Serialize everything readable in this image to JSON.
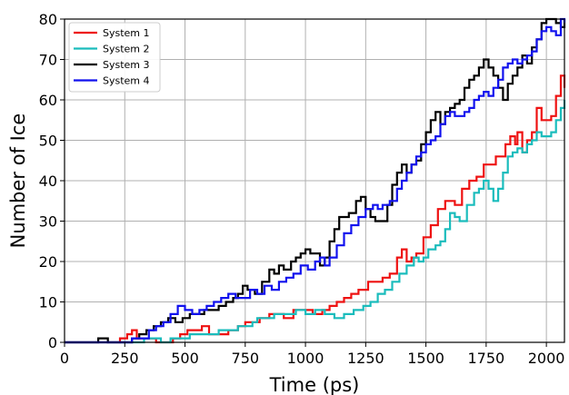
{
  "chart_data": {
    "type": "line",
    "title": "",
    "xlabel": "Time (ps)",
    "ylabel": "Number of Ice",
    "xlim": [
      0,
      2075
    ],
    "ylim": [
      0,
      80
    ],
    "xticks": [
      0,
      250,
      500,
      750,
      1000,
      1250,
      1500,
      1750,
      2000
    ],
    "yticks": [
      0,
      10,
      20,
      30,
      40,
      50,
      60,
      70,
      80
    ],
    "grid": true,
    "legend_position": "top-left",
    "series": [
      {
        "name": "System 1",
        "color": "#ee1111",
        "points": [
          [
            0,
            0
          ],
          [
            200,
            0
          ],
          [
            230,
            1
          ],
          [
            260,
            2
          ],
          [
            280,
            3
          ],
          [
            300,
            1
          ],
          [
            340,
            1
          ],
          [
            380,
            0
          ],
          [
            420,
            0
          ],
          [
            450,
            1
          ],
          [
            480,
            2
          ],
          [
            510,
            3
          ],
          [
            540,
            3
          ],
          [
            570,
            4
          ],
          [
            600,
            2
          ],
          [
            640,
            2
          ],
          [
            680,
            3
          ],
          [
            720,
            4
          ],
          [
            750,
            5
          ],
          [
            780,
            5
          ],
          [
            810,
            6
          ],
          [
            850,
            7
          ],
          [
            880,
            7
          ],
          [
            910,
            6
          ],
          [
            950,
            8
          ],
          [
            990,
            8
          ],
          [
            1030,
            7
          ],
          [
            1070,
            8
          ],
          [
            1100,
            9
          ],
          [
            1130,
            10
          ],
          [
            1160,
            11
          ],
          [
            1190,
            12
          ],
          [
            1220,
            13
          ],
          [
            1260,
            15
          ],
          [
            1290,
            15
          ],
          [
            1320,
            16
          ],
          [
            1350,
            17
          ],
          [
            1380,
            21
          ],
          [
            1400,
            23
          ],
          [
            1420,
            20
          ],
          [
            1440,
            21
          ],
          [
            1460,
            22
          ],
          [
            1490,
            26
          ],
          [
            1520,
            29
          ],
          [
            1550,
            33
          ],
          [
            1580,
            35
          ],
          [
            1600,
            35
          ],
          [
            1620,
            34
          ],
          [
            1650,
            38
          ],
          [
            1680,
            40
          ],
          [
            1710,
            41
          ],
          [
            1740,
            44
          ],
          [
            1770,
            44
          ],
          [
            1790,
            46
          ],
          [
            1810,
            46
          ],
          [
            1830,
            49
          ],
          [
            1850,
            51
          ],
          [
            1870,
            49
          ],
          [
            1880,
            52
          ],
          [
            1900,
            47
          ],
          [
            1920,
            50
          ],
          [
            1940,
            52
          ],
          [
            1960,
            58
          ],
          [
            1980,
            55
          ],
          [
            2000,
            55
          ],
          [
            2020,
            56
          ],
          [
            2040,
            61
          ],
          [
            2060,
            66
          ],
          [
            2075,
            63
          ]
        ]
      },
      {
        "name": "System 2",
        "color": "#1abcbc",
        "points": [
          [
            0,
            0
          ],
          [
            300,
            0
          ],
          [
            330,
            1
          ],
          [
            360,
            1
          ],
          [
            400,
            0
          ],
          [
            440,
            1
          ],
          [
            480,
            1
          ],
          [
            520,
            2
          ],
          [
            560,
            2
          ],
          [
            600,
            2
          ],
          [
            640,
            3
          ],
          [
            680,
            3
          ],
          [
            720,
            4
          ],
          [
            750,
            4
          ],
          [
            780,
            5
          ],
          [
            800,
            6
          ],
          [
            840,
            6
          ],
          [
            870,
            7
          ],
          [
            920,
            7
          ],
          [
            960,
            8
          ],
          [
            1000,
            7
          ],
          [
            1040,
            8
          ],
          [
            1080,
            7
          ],
          [
            1120,
            6
          ],
          [
            1160,
            7
          ],
          [
            1200,
            8
          ],
          [
            1240,
            9
          ],
          [
            1270,
            10
          ],
          [
            1300,
            12
          ],
          [
            1330,
            13
          ],
          [
            1360,
            15
          ],
          [
            1390,
            17
          ],
          [
            1420,
            19
          ],
          [
            1450,
            21
          ],
          [
            1470,
            20
          ],
          [
            1490,
            21
          ],
          [
            1510,
            23
          ],
          [
            1540,
            24
          ],
          [
            1560,
            25
          ],
          [
            1580,
            28
          ],
          [
            1600,
            32
          ],
          [
            1620,
            31
          ],
          [
            1640,
            30
          ],
          [
            1670,
            34
          ],
          [
            1700,
            37
          ],
          [
            1720,
            38
          ],
          [
            1740,
            40
          ],
          [
            1760,
            38
          ],
          [
            1780,
            35
          ],
          [
            1800,
            38
          ],
          [
            1820,
            42
          ],
          [
            1840,
            46
          ],
          [
            1860,
            47
          ],
          [
            1880,
            48
          ],
          [
            1900,
            47
          ],
          [
            1920,
            49
          ],
          [
            1940,
            50
          ],
          [
            1960,
            52
          ],
          [
            1980,
            51
          ],
          [
            2000,
            51
          ],
          [
            2020,
            52
          ],
          [
            2040,
            55
          ],
          [
            2060,
            58
          ],
          [
            2075,
            60
          ]
        ]
      },
      {
        "name": "System 3",
        "color": "#000000",
        "points": [
          [
            0,
            0
          ],
          [
            130,
            0
          ],
          [
            140,
            1
          ],
          [
            170,
            1
          ],
          [
            180,
            0
          ],
          [
            250,
            0
          ],
          [
            280,
            1
          ],
          [
            310,
            2
          ],
          [
            340,
            3
          ],
          [
            370,
            4
          ],
          [
            400,
            5
          ],
          [
            430,
            6
          ],
          [
            460,
            5
          ],
          [
            490,
            6
          ],
          [
            520,
            7
          ],
          [
            550,
            7
          ],
          [
            580,
            8
          ],
          [
            610,
            8
          ],
          [
            640,
            9
          ],
          [
            670,
            10
          ],
          [
            700,
            11
          ],
          [
            720,
            12
          ],
          [
            740,
            14
          ],
          [
            760,
            13
          ],
          [
            790,
            12
          ],
          [
            820,
            15
          ],
          [
            850,
            18
          ],
          [
            870,
            17
          ],
          [
            890,
            19
          ],
          [
            910,
            18
          ],
          [
            940,
            20
          ],
          [
            960,
            21
          ],
          [
            980,
            22
          ],
          [
            1000,
            23
          ],
          [
            1020,
            22
          ],
          [
            1040,
            22
          ],
          [
            1060,
            19
          ],
          [
            1080,
            21
          ],
          [
            1100,
            25
          ],
          [
            1120,
            28
          ],
          [
            1140,
            31
          ],
          [
            1160,
            31
          ],
          [
            1180,
            32
          ],
          [
            1210,
            35
          ],
          [
            1230,
            36
          ],
          [
            1250,
            33
          ],
          [
            1270,
            31
          ],
          [
            1290,
            30
          ],
          [
            1310,
            30
          ],
          [
            1340,
            34
          ],
          [
            1360,
            39
          ],
          [
            1380,
            42
          ],
          [
            1400,
            44
          ],
          [
            1420,
            42
          ],
          [
            1440,
            44
          ],
          [
            1460,
            45
          ],
          [
            1480,
            49
          ],
          [
            1500,
            52
          ],
          [
            1520,
            55
          ],
          [
            1540,
            57
          ],
          [
            1560,
            54
          ],
          [
            1580,
            57
          ],
          [
            1600,
            58
          ],
          [
            1620,
            59
          ],
          [
            1640,
            60
          ],
          [
            1660,
            63
          ],
          [
            1680,
            65
          ],
          [
            1700,
            66
          ],
          [
            1720,
            68
          ],
          [
            1740,
            70
          ],
          [
            1760,
            68
          ],
          [
            1780,
            66
          ],
          [
            1800,
            63
          ],
          [
            1820,
            60
          ],
          [
            1840,
            64
          ],
          [
            1860,
            66
          ],
          [
            1880,
            68
          ],
          [
            1900,
            71
          ],
          [
            1920,
            69
          ],
          [
            1940,
            73
          ],
          [
            1960,
            75
          ],
          [
            1980,
            79
          ],
          [
            2000,
            80
          ],
          [
            2020,
            80
          ],
          [
            2040,
            79
          ],
          [
            2060,
            78
          ],
          [
            2075,
            80
          ]
        ]
      },
      {
        "name": "System 4",
        "color": "#1111ee",
        "points": [
          [
            0,
            0
          ],
          [
            250,
            0
          ],
          [
            280,
            1
          ],
          [
            320,
            1
          ],
          [
            350,
            3
          ],
          [
            380,
            4
          ],
          [
            410,
            5
          ],
          [
            440,
            7
          ],
          [
            470,
            9
          ],
          [
            500,
            8
          ],
          [
            530,
            7
          ],
          [
            560,
            8
          ],
          [
            590,
            9
          ],
          [
            620,
            10
          ],
          [
            650,
            11
          ],
          [
            680,
            12
          ],
          [
            710,
            11
          ],
          [
            740,
            11
          ],
          [
            770,
            13
          ],
          [
            800,
            12
          ],
          [
            830,
            14
          ],
          [
            860,
            13
          ],
          [
            890,
            15
          ],
          [
            920,
            16
          ],
          [
            950,
            17
          ],
          [
            980,
            19
          ],
          [
            1010,
            18
          ],
          [
            1040,
            20
          ],
          [
            1060,
            21
          ],
          [
            1080,
            19
          ],
          [
            1100,
            21
          ],
          [
            1130,
            24
          ],
          [
            1160,
            27
          ],
          [
            1190,
            29
          ],
          [
            1220,
            31
          ],
          [
            1250,
            33
          ],
          [
            1280,
            34
          ],
          [
            1300,
            33
          ],
          [
            1320,
            34
          ],
          [
            1350,
            35
          ],
          [
            1380,
            38
          ],
          [
            1400,
            40
          ],
          [
            1420,
            42
          ],
          [
            1440,
            44
          ],
          [
            1460,
            46
          ],
          [
            1480,
            47
          ],
          [
            1500,
            49
          ],
          [
            1520,
            50
          ],
          [
            1540,
            51
          ],
          [
            1560,
            54
          ],
          [
            1580,
            56
          ],
          [
            1600,
            57
          ],
          [
            1620,
            56
          ],
          [
            1640,
            56
          ],
          [
            1660,
            57
          ],
          [
            1680,
            58
          ],
          [
            1700,
            60
          ],
          [
            1720,
            61
          ],
          [
            1740,
            62
          ],
          [
            1760,
            61
          ],
          [
            1780,
            63
          ],
          [
            1800,
            65
          ],
          [
            1820,
            68
          ],
          [
            1840,
            69
          ],
          [
            1860,
            70
          ],
          [
            1880,
            69
          ],
          [
            1900,
            70
          ],
          [
            1920,
            71
          ],
          [
            1940,
            72
          ],
          [
            1960,
            75
          ],
          [
            1980,
            77
          ],
          [
            2000,
            78
          ],
          [
            2020,
            77
          ],
          [
            2040,
            76
          ],
          [
            2060,
            80
          ],
          [
            2075,
            79
          ]
        ]
      }
    ]
  }
}
